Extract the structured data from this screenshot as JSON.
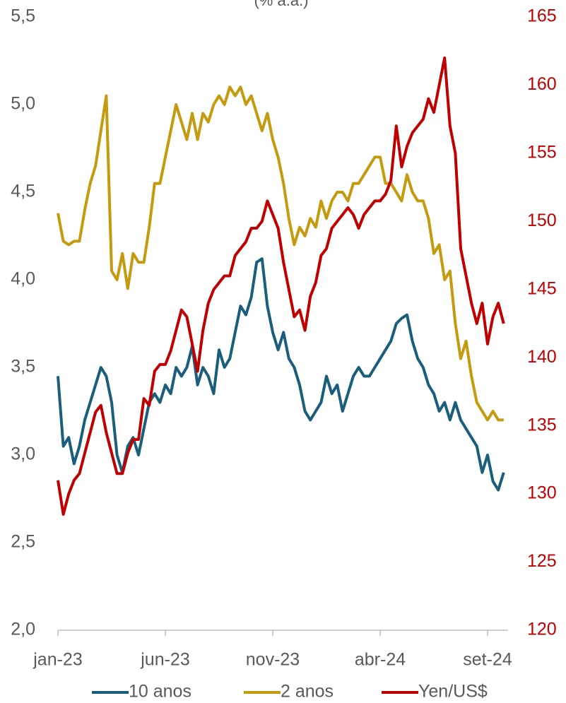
{
  "chart_data": {
    "type": "line",
    "subtitle": "(% a.a.)",
    "categories": [
      "jan-23",
      null,
      null,
      null,
      null,
      null,
      null,
      null,
      null,
      null,
      null,
      null,
      null,
      null,
      null,
      null,
      null,
      null,
      null,
      null,
      "jun-23",
      null,
      null,
      null,
      null,
      null,
      null,
      null,
      null,
      null,
      null,
      null,
      null,
      null,
      null,
      null,
      null,
      null,
      null,
      null,
      "nov-23",
      null,
      null,
      null,
      null,
      null,
      null,
      null,
      null,
      null,
      null,
      null,
      null,
      null,
      null,
      null,
      null,
      null,
      null,
      null,
      "abr-24",
      null,
      null,
      null,
      null,
      null,
      null,
      null,
      null,
      null,
      null,
      null,
      null,
      null,
      null,
      null,
      null,
      null,
      null,
      null,
      "set-24",
      null,
      null,
      null
    ],
    "series": [
      {
        "name": "10 anos",
        "color": "#1b5e7b",
        "axis": "y",
        "values": [
          3.45,
          3.05,
          3.1,
          2.95,
          3.05,
          3.2,
          3.3,
          3.4,
          3.5,
          3.45,
          3.3,
          3.0,
          2.9,
          3.05,
          3.1,
          3.0,
          3.15,
          3.3,
          3.35,
          3.3,
          3.4,
          3.35,
          3.5,
          3.45,
          3.5,
          3.62,
          3.4,
          3.5,
          3.45,
          3.35,
          3.6,
          3.5,
          3.55,
          3.7,
          3.85,
          3.8,
          3.9,
          4.1,
          4.12,
          3.85,
          3.7,
          3.6,
          3.7,
          3.55,
          3.5,
          3.4,
          3.25,
          3.2,
          3.25,
          3.3,
          3.45,
          3.35,
          3.4,
          3.25,
          3.35,
          3.45,
          3.5,
          3.45,
          3.45,
          3.5,
          3.55,
          3.6,
          3.65,
          3.75,
          3.78,
          3.8,
          3.65,
          3.55,
          3.5,
          3.4,
          3.35,
          3.25,
          3.3,
          3.2,
          3.3,
          3.2,
          3.15,
          3.1,
          3.05,
          2.9,
          3.0,
          2.85,
          2.8,
          2.9
        ]
      },
      {
        "name": "2 anos",
        "color": "#c49a0f",
        "axis": "y",
        "values": [
          4.38,
          4.22,
          4.2,
          4.22,
          4.22,
          4.4,
          4.55,
          4.65,
          4.85,
          5.05,
          4.05,
          4.0,
          4.15,
          3.95,
          4.15,
          4.1,
          4.1,
          4.3,
          4.55,
          4.55,
          4.7,
          4.85,
          5.0,
          4.9,
          4.8,
          4.95,
          4.8,
          4.95,
          4.9,
          5.0,
          5.05,
          5.0,
          5.1,
          5.05,
          5.1,
          5.0,
          5.05,
          4.95,
          4.85,
          4.95,
          4.8,
          4.7,
          4.55,
          4.35,
          4.2,
          4.3,
          4.25,
          4.35,
          4.3,
          4.45,
          4.35,
          4.45,
          4.5,
          4.5,
          4.45,
          4.55,
          4.55,
          4.6,
          4.65,
          4.7,
          4.7,
          4.55,
          4.55,
          4.5,
          4.45,
          4.6,
          4.5,
          4.45,
          4.45,
          4.35,
          4.15,
          4.2,
          4.0,
          4.05,
          3.75,
          3.55,
          3.65,
          3.45,
          3.3,
          3.25,
          3.2,
          3.25,
          3.2,
          3.2
        ]
      },
      {
        "name": "Yen/US$",
        "color": "#c00000",
        "axis": "y2",
        "values": [
          131,
          128.5,
          130,
          131,
          131.5,
          133,
          134.5,
          136,
          136.5,
          134.5,
          133,
          131.5,
          131.5,
          133,
          134,
          134,
          137,
          136.5,
          139,
          139.5,
          139.5,
          140.5,
          142,
          143.5,
          143,
          141,
          139,
          142,
          144,
          145,
          145.5,
          146,
          146,
          147.5,
          148,
          148.5,
          149.5,
          149.5,
          150,
          151.5,
          150.5,
          149.5,
          147,
          145,
          143,
          143.5,
          142,
          144.5,
          145.5,
          147.5,
          148,
          149.5,
          150,
          150.5,
          151,
          150.5,
          149.5,
          150.5,
          151,
          151.5,
          151.5,
          152,
          153,
          157,
          154,
          155.5,
          156.5,
          157,
          157.5,
          159,
          158,
          160,
          162,
          157,
          155,
          148,
          146,
          144,
          142.5,
          144,
          141,
          143,
          144,
          142.5
        ]
      }
    ],
    "ylim": [
      2.0,
      5.5
    ],
    "yticks": [
      {
        "value": 2.0,
        "label": "2,0"
      },
      {
        "value": 2.5,
        "label": "2,5"
      },
      {
        "value": 3.0,
        "label": "3,0"
      },
      {
        "value": 3.5,
        "label": "3,5"
      },
      {
        "value": 4.0,
        "label": "4,0"
      },
      {
        "value": 4.5,
        "label": "4,5"
      },
      {
        "value": 5.0,
        "label": "5,0"
      },
      {
        "value": 5.5,
        "label": "5,5"
      }
    ],
    "y2lim": [
      120,
      165
    ],
    "y2ticks": [
      120,
      125,
      130,
      135,
      140,
      145,
      150,
      155,
      160,
      165
    ],
    "y2_tick_color": "#c00000",
    "legend": "bottom",
    "grid": false
  }
}
